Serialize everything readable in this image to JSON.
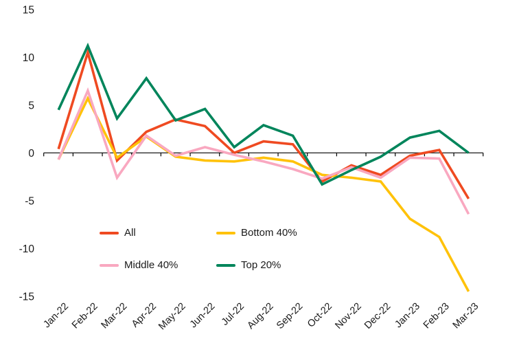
{
  "chart_data": {
    "type": "line",
    "title": "",
    "xlabel": "",
    "ylabel": "",
    "categories": [
      "Jan-22",
      "Feb-22",
      "Mar-22",
      "Apr-22",
      "May-22",
      "Jun-22",
      "Jul-22",
      "Aug-22",
      "Sep-22",
      "Oct-22",
      "Nov-22",
      "Dec-22",
      "Jan-23",
      "Feb-23",
      "Mar-23"
    ],
    "series": [
      {
        "name": "All",
        "color": "#EF4A21",
        "values": [
          0.4,
          10.5,
          -0.8,
          2.2,
          3.5,
          2.8,
          0.0,
          1.2,
          0.9,
          -3.0,
          -1.3,
          -2.3,
          -0.3,
          0.3,
          -4.8
        ]
      },
      {
        "name": "Bottom 40%",
        "color": "#FFC20A",
        "values": [
          -0.7,
          5.7,
          -0.5,
          1.7,
          -0.4,
          -0.8,
          -0.9,
          -0.5,
          -0.9,
          -2.3,
          -2.6,
          -3.0,
          -6.9,
          -8.8,
          -14.5
        ]
      },
      {
        "name": "Middle 40%",
        "color": "#F9A8C0",
        "values": [
          -0.7,
          6.5,
          -2.6,
          1.8,
          -0.3,
          0.6,
          -0.2,
          -0.9,
          -1.7,
          -2.7,
          -1.5,
          -2.6,
          -0.5,
          -0.6,
          -6.4
        ]
      },
      {
        "name": "Top 20%",
        "color": "#00855B",
        "values": [
          4.5,
          11.2,
          3.6,
          7.8,
          3.4,
          4.6,
          0.6,
          2.9,
          1.8,
          -3.3,
          -1.8,
          -0.4,
          1.6,
          2.3,
          0.0
        ]
      }
    ],
    "ylim": [
      -15,
      15
    ],
    "yticks": [
      15,
      10,
      5,
      0,
      -5,
      -10,
      -15
    ],
    "grid": false,
    "legend_position": "bottom, two columns by two rows",
    "axis_color": "#000000",
    "tick_label_color": "#1a1a1a"
  }
}
